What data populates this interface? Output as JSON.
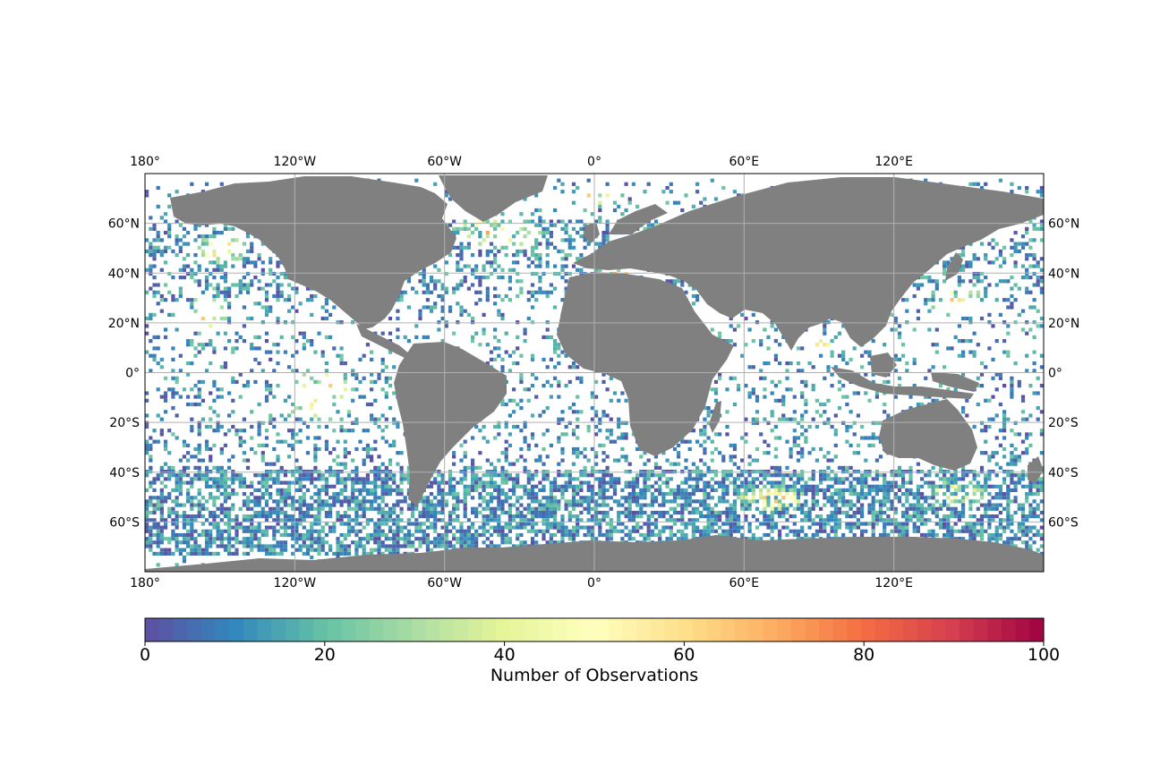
{
  "map": {
    "projection": "PlateCarree",
    "extent_lon": [
      -180,
      180
    ],
    "extent_lat": [
      -80,
      80
    ],
    "ocean_color": "#ffffff",
    "land_color": "#808080",
    "grid_color": "#b0b0b0",
    "lon_ticks": [
      {
        "value": -180,
        "label": "180°"
      },
      {
        "value": -120,
        "label": "120°W"
      },
      {
        "value": -60,
        "label": "60°W"
      },
      {
        "value": 0,
        "label": "0°"
      },
      {
        "value": 60,
        "label": "60°E"
      },
      {
        "value": 120,
        "label": "120°E"
      }
    ],
    "lat_ticks": [
      {
        "value": 60,
        "label": "60°N"
      },
      {
        "value": 40,
        "label": "40°N"
      },
      {
        "value": 20,
        "label": "20°N"
      },
      {
        "value": 0,
        "label": "0°"
      },
      {
        "value": -20,
        "label": "20°S"
      },
      {
        "value": -40,
        "label": "40°S"
      },
      {
        "value": -60,
        "label": "60°S"
      }
    ],
    "data_layer": "gridded observation counts (approx. 1.5° cells)"
  },
  "colorbar": {
    "label": "Number of Observations",
    "colormap": "Spectral_r",
    "min": 0,
    "max": 100,
    "ticks": [
      {
        "value": 0,
        "label": "0"
      },
      {
        "value": 20,
        "label": "20"
      },
      {
        "value": 40,
        "label": "40"
      },
      {
        "value": 60,
        "label": "60"
      },
      {
        "value": 80,
        "label": "80"
      },
      {
        "value": 100,
        "label": "100"
      }
    ],
    "stops": [
      "#5e4fa2",
      "#3288bd",
      "#66c2a5",
      "#abdda4",
      "#e6f598",
      "#ffffbf",
      "#fee08b",
      "#fdae61",
      "#f46d43",
      "#d53e4f",
      "#9e0142"
    ]
  }
}
